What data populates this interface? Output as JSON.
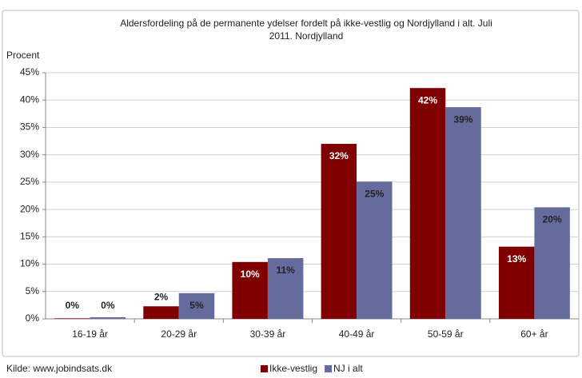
{
  "chart_data": {
    "type": "bar",
    "title": "Aldersfordeling på de permanente ydelser fordelt på ikke-vestlig og Nordjylland i alt. Juli 2011. Nordjylland",
    "y_axis_label": "Procent",
    "source": "Kilde: www.jobindsats.dk",
    "categories": [
      "16-19 år",
      "20-29 år",
      "30-39 år",
      "40-49 år",
      "50-59 år",
      "60+ år"
    ],
    "series": [
      {
        "name": "Ikke-vestlig",
        "color": "#800000",
        "values": [
          0.1,
          2.3,
          10.4,
          32.0,
          42.2,
          13.2
        ],
        "value_labels": [
          "0%",
          "2%",
          "10%",
          "32%",
          "42%",
          "13%"
        ]
      },
      {
        "name": "NJ i alt",
        "color": "#666b9e",
        "values": [
          0.3,
          4.7,
          11.1,
          25.1,
          38.7,
          20.4
        ],
        "value_labels": [
          "0%",
          "5%",
          "11%",
          "25%",
          "39%",
          "20%"
        ]
      }
    ],
    "ylim": [
      0,
      45
    ],
    "yticks": [
      {
        "value": 0,
        "label": "0%"
      },
      {
        "value": 5,
        "label": "5%"
      },
      {
        "value": 10,
        "label": "10%"
      },
      {
        "value": 15,
        "label": "15%"
      },
      {
        "value": 20,
        "label": "20%"
      },
      {
        "value": 25,
        "label": "25%"
      },
      {
        "value": 30,
        "label": "30%"
      },
      {
        "value": 35,
        "label": "35%"
      },
      {
        "value": 40,
        "label": "40%"
      },
      {
        "value": 45,
        "label": "45%"
      }
    ],
    "grid": true,
    "legend": "bottom"
  }
}
